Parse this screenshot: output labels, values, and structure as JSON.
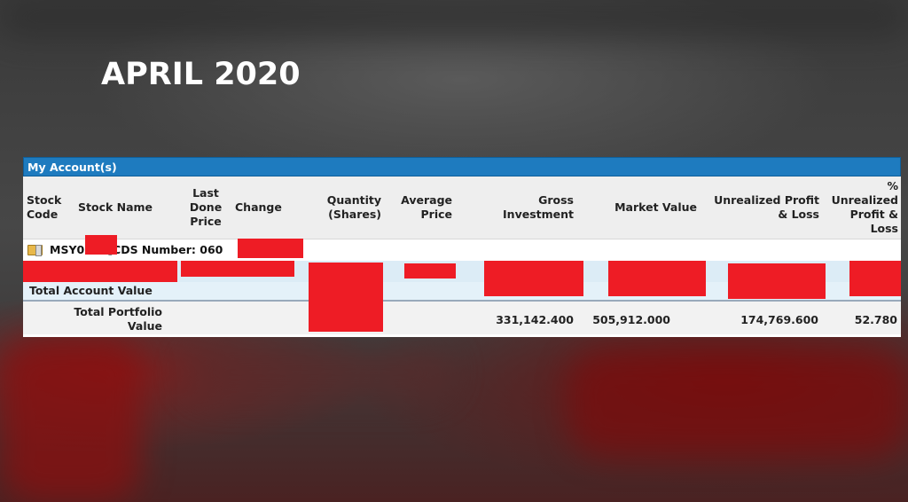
{
  "headline": "APRIL 2020",
  "panel": {
    "title": "My Account(s)",
    "columns": {
      "stock_code": "Stock\nCode",
      "stock_name": "Stock Name",
      "last_done": "Last\nDone\nPrice",
      "change": "Change",
      "quantity": "Quantity\n(Shares)",
      "avg_price": "Average\nPrice",
      "gross_inv": "Gross\nInvestment",
      "market_value": "Market Value",
      "unreal_pl": "Unrealized Profit\n& Loss",
      "pct_unreal": "%\nUnrealized\nProfit &\nLoss"
    },
    "account_label": "MSY0      [CDS Number: 060",
    "total_account_label": "Total Account Value",
    "total_portfolio": {
      "label": "Total Portfolio\nValue",
      "gross_investment": "331,142.400",
      "market_value": "505,912.000",
      "unrealized_pl": "174,769.600",
      "pct_unrealized": "52.780"
    }
  },
  "colors": {
    "title_bar": "#1e7bbf",
    "redaction": "#ee1c25",
    "header_bg": "#eeeeee",
    "row_highlight": "#dcecf6"
  }
}
